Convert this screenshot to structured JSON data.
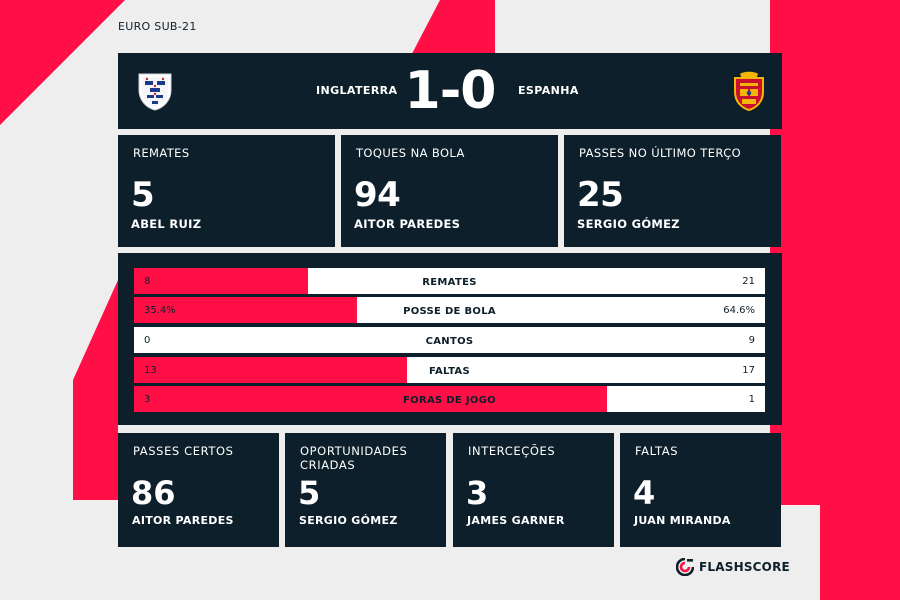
{
  "competition": "EURO SUB-21",
  "match": {
    "home_team": "INGLATERRA",
    "away_team": "ESPANHA",
    "score": "1-0"
  },
  "highlight_stats": [
    {
      "title": "REMATES",
      "value": "5",
      "player": "ABEL RUIZ"
    },
    {
      "title": "TOQUES NA BOLA",
      "value": "94",
      "player": "AITOR PAREDES"
    },
    {
      "title": "PASSES NO ÚLTIMO TERÇO",
      "value": "25",
      "player": "SERGIO GÓMEZ"
    }
  ],
  "comparison": [
    {
      "label": "REMATES",
      "home": "8",
      "away": "21",
      "home_share": 0.276
    },
    {
      "label": "POSSE DE BOLA",
      "home": "35.4%",
      "away": "64.6%",
      "home_share": 0.354
    },
    {
      "label": "CANTOS",
      "home": "0",
      "away": "9",
      "home_share": 0.0
    },
    {
      "label": "FALTAS",
      "home": "13",
      "away": "17",
      "home_share": 0.433
    },
    {
      "label": "FORAS DE JOGO",
      "home": "3",
      "away": "1",
      "home_share": 0.75
    }
  ],
  "player_stats": [
    {
      "title": "PASSES CERTOS",
      "value": "86",
      "player": "AITOR PAREDES"
    },
    {
      "title": "OPORTUNIDADES CRIADAS",
      "value": "5",
      "player": "SERGIO GÓMEZ"
    },
    {
      "title": "INTERCEÇÕES",
      "value": "3",
      "player": "JAMES GARNER"
    },
    {
      "title": "FALTAS",
      "value": "4",
      "player": "JUAN MIRANDA"
    }
  ],
  "brand": "FLASHSCORE",
  "colors": {
    "accent": "#ff0f46",
    "panel": "#0d1f2a",
    "background": "#eeeeee"
  },
  "icons": {
    "home_crest": "england-crest-icon",
    "away_crest": "spain-crest-icon",
    "brand_logo": "flashscore-logo-icon"
  }
}
